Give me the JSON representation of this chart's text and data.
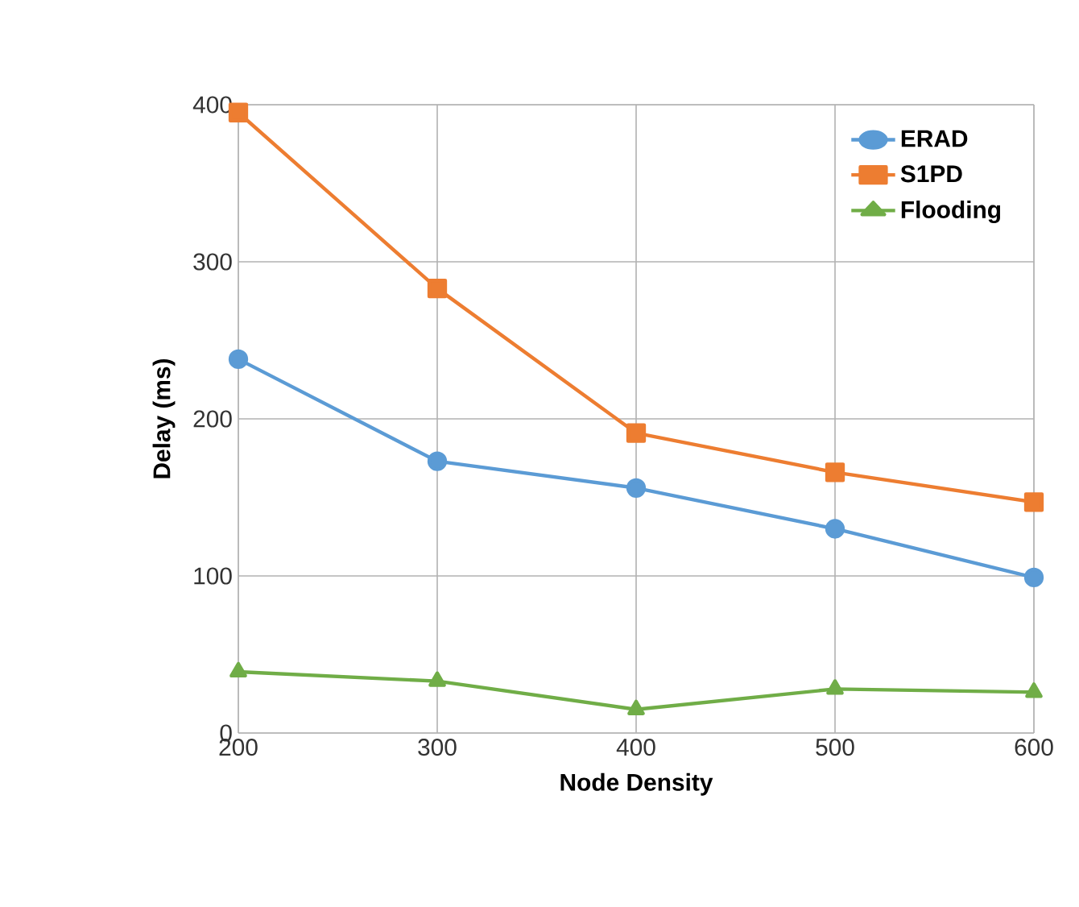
{
  "chart_data": {
    "type": "line",
    "xlabel": "Node Density",
    "ylabel": "Delay (ms)",
    "x": [
      200,
      300,
      400,
      500,
      600
    ],
    "series": [
      {
        "name": "ERAD",
        "color": "#5b9bd5",
        "marker": "circle",
        "values": [
          238,
          173,
          156,
          130,
          99
        ]
      },
      {
        "name": "S1PD",
        "color": "#ed7d31",
        "marker": "square",
        "values": [
          395,
          283,
          191,
          166,
          147
        ]
      },
      {
        "name": "Flooding",
        "color": "#70ad47",
        "marker": "triangle",
        "values": [
          39,
          33,
          15,
          28,
          26
        ]
      }
    ],
    "xlim": [
      200,
      600
    ],
    "ylim": [
      0,
      400
    ],
    "xticks": [
      200,
      300,
      400,
      500,
      600
    ],
    "yticks": [
      0,
      100,
      200,
      300,
      400
    ],
    "grid": true,
    "legend": "top right",
    "line_style": "solid"
  }
}
